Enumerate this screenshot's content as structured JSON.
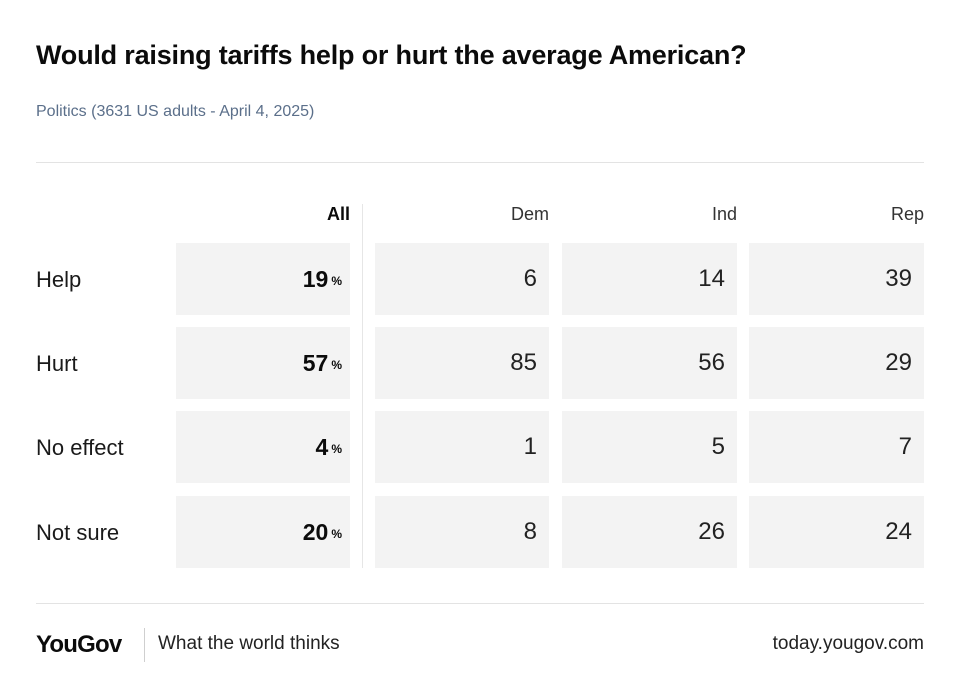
{
  "title": "Would raising tariffs help or hurt the average American?",
  "subtitle": "Politics (3631 US adults - April 4, 2025)",
  "footer": {
    "brand": "YouGov",
    "tagline": "What the world thinks",
    "url": "today.yougov.com"
  },
  "chart_data": {
    "type": "table",
    "title": "Would raising tariffs help or hurt the average American?",
    "subtitle": "Politics (3631 US adults - April 4, 2025)",
    "unit": "%",
    "columns": [
      "All",
      "Dem",
      "Ind",
      "Rep"
    ],
    "rows": [
      {
        "label": "Help",
        "values": [
          19,
          6,
          14,
          39
        ]
      },
      {
        "label": "Hurt",
        "values": [
          57,
          85,
          56,
          29
        ]
      },
      {
        "label": "No effect",
        "values": [
          4,
          1,
          5,
          7
        ]
      },
      {
        "label": "Not sure",
        "values": [
          20,
          8,
          26,
          24
        ]
      }
    ]
  }
}
